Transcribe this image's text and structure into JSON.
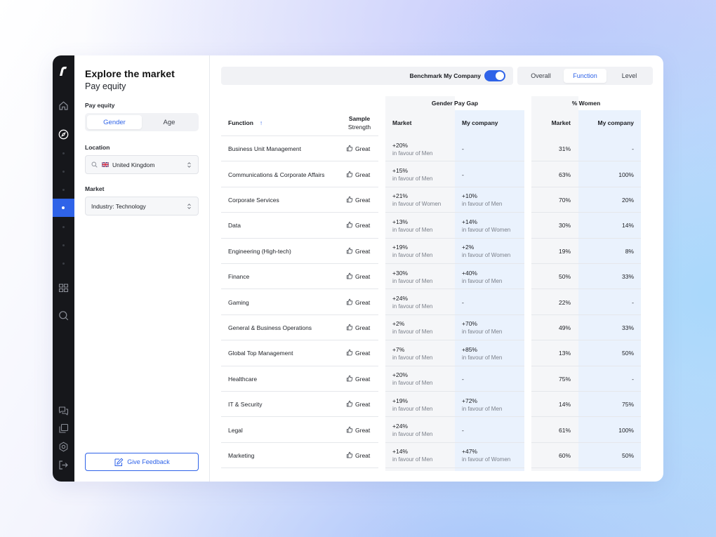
{
  "sidebar": {
    "title": "Explore the market",
    "subtitle": "Pay equity",
    "pay_equity_label": "Pay equity",
    "segment": {
      "options": [
        "Gender",
        "Age"
      ],
      "selected": "Gender"
    },
    "location_label": "Location",
    "location_value": "United Kingdom",
    "market_label": "Market",
    "market_value": "Industry: Technology",
    "feedback_label": "Give Feedback"
  },
  "toolbar": {
    "benchmark_label": "Benchmark My Company",
    "benchmark_on": true,
    "tabs": [
      "Overall",
      "Function",
      "Level"
    ],
    "active_tab": "Function"
  },
  "table": {
    "groups": {
      "gap": "Gender Pay Gap",
      "women": "% Women"
    },
    "headers": {
      "function": "Function",
      "sort_arrow": "↑",
      "sample": "Sample",
      "strength": "Strength",
      "gap_market": "Market",
      "gap_company": "My company",
      "women_market": "Market",
      "women_company": "My company"
    },
    "rows": [
      {
        "function": "Business Unit Management",
        "strength": "Great",
        "gm_val": "+20%",
        "gm_sub": "in favour of Men",
        "gc_val": "-",
        "gc_sub": "",
        "wm": "31%",
        "wc": "-"
      },
      {
        "function": "Communications & Corporate Affairs",
        "strength": "Great",
        "gm_val": "+15%",
        "gm_sub": "in favour of Men",
        "gc_val": "-",
        "gc_sub": "",
        "wm": "63%",
        "wc": "100%"
      },
      {
        "function": "Corporate Services",
        "strength": "Great",
        "gm_val": "+21%",
        "gm_sub": "in favour of Women",
        "gc_val": "+10%",
        "gc_sub": "in favour of Men",
        "wm": "70%",
        "wc": "20%"
      },
      {
        "function": "Data",
        "strength": "Great",
        "gm_val": "+13%",
        "gm_sub": "in favour of Men",
        "gc_val": "+14%",
        "gc_sub": "in favour of Women",
        "wm": "30%",
        "wc": "14%"
      },
      {
        "function": "Engineering (High-tech)",
        "strength": "Great",
        "gm_val": "+19%",
        "gm_sub": "in favour of Men",
        "gc_val": "+2%",
        "gc_sub": "in favour of Women",
        "wm": "19%",
        "wc": "8%"
      },
      {
        "function": "Finance",
        "strength": "Great",
        "gm_val": "+30%",
        "gm_sub": "in favour of Men",
        "gc_val": "+40%",
        "gc_sub": "in favour of Men",
        "wm": "50%",
        "wc": "33%"
      },
      {
        "function": "Gaming",
        "strength": "Great",
        "gm_val": "+24%",
        "gm_sub": "in favour of Men",
        "gc_val": "-",
        "gc_sub": "",
        "wm": "22%",
        "wc": "-"
      },
      {
        "function": "General & Business Operations",
        "strength": "Great",
        "gm_val": "+2%",
        "gm_sub": "in favour of Men",
        "gc_val": "+70%",
        "gc_sub": "in favour of Men",
        "wm": "49%",
        "wc": "33%"
      },
      {
        "function": "Global Top Management",
        "strength": "Great",
        "gm_val": "+7%",
        "gm_sub": "in favour of Men",
        "gc_val": "+85%",
        "gc_sub": "in favour of Men",
        "wm": "13%",
        "wc": "50%"
      },
      {
        "function": "Healthcare",
        "strength": "Great",
        "gm_val": "+20%",
        "gm_sub": "in favour of Men",
        "gc_val": "-",
        "gc_sub": "",
        "wm": "75%",
        "wc": "-"
      },
      {
        "function": "IT & Security",
        "strength": "Great",
        "gm_val": "+19%",
        "gm_sub": "in favour of Men",
        "gc_val": "+72%",
        "gc_sub": "in favour of Men",
        "wm": "14%",
        "wc": "75%"
      },
      {
        "function": "Legal",
        "strength": "Great",
        "gm_val": "+24%",
        "gm_sub": "in favour of Men",
        "gc_val": "-",
        "gc_sub": "",
        "wm": "61%",
        "wc": "100%"
      },
      {
        "function": "Marketing",
        "strength": "Great",
        "gm_val": "+14%",
        "gm_sub": "in favour of Men",
        "gc_val": "+47%",
        "gc_sub": "in favour of Women",
        "wm": "60%",
        "wc": "50%"
      }
    ]
  },
  "colors": {
    "accent": "#2f63e8",
    "rail": "#16171b",
    "company_col": "#eaf2fd",
    "market_col": "#f5f6f8"
  },
  "icons": [
    "logo-icon",
    "home-icon",
    "compass-icon",
    "grid-icon",
    "search-icon",
    "chat-icon",
    "copy-icon",
    "settings-icon",
    "logout-icon",
    "thumbs-up-icon",
    "pencil-icon",
    "chevron-updown-icon",
    "uk-flag-icon"
  ]
}
